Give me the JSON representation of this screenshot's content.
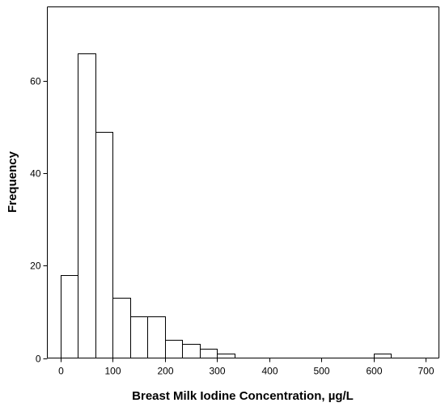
{
  "chart_data": {
    "type": "bar",
    "subtype": "histogram",
    "xlabel": "Breast Milk Iodine Concentration, µg/L",
    "ylabel": "Frequency",
    "xlim": [
      -25,
      725
    ],
    "ylim": [
      0,
      76
    ],
    "x_ticks": [
      0,
      100,
      200,
      300,
      400,
      500,
      600,
      700
    ],
    "y_ticks": [
      0,
      20,
      40,
      60
    ],
    "bin_width": 33.33,
    "bins": [
      {
        "start": 0,
        "end": 33.33,
        "count": 18
      },
      {
        "start": 33.33,
        "end": 66.67,
        "count": 66
      },
      {
        "start": 66.67,
        "end": 100,
        "count": 49
      },
      {
        "start": 100,
        "end": 133.33,
        "count": 13
      },
      {
        "start": 133.33,
        "end": 166.67,
        "count": 9
      },
      {
        "start": 166.67,
        "end": 200,
        "count": 9
      },
      {
        "start": 200,
        "end": 233.33,
        "count": 4
      },
      {
        "start": 233.33,
        "end": 266.67,
        "count": 3
      },
      {
        "start": 266.67,
        "end": 300,
        "count": 2
      },
      {
        "start": 300,
        "end": 333.33,
        "count": 1
      },
      {
        "start": 600,
        "end": 633.33,
        "count": 1
      }
    ],
    "grid": false,
    "legend": "none"
  }
}
